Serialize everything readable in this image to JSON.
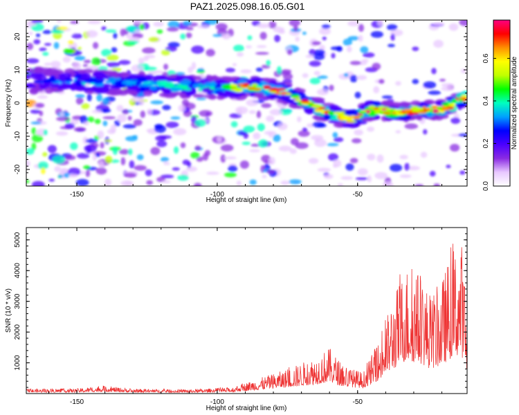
{
  "title": "PAZ1.2025.098.16.05.G01",
  "chart_data": [
    {
      "type": "heatmap",
      "xlabel": "Height of straight line (km)",
      "ylabel": "Frequency (Hz)",
      "xlim": [
        -168,
        -11
      ],
      "ylim": [
        -25,
        25
      ],
      "x_ticks": [
        -150,
        -100,
        -50
      ],
      "y_ticks": [
        20,
        10,
        0,
        -10,
        -20
      ],
      "colorbar": {
        "label": "Normalized spectral amplitude",
        "range": [
          0.0,
          0.78
        ],
        "ticks": [
          0.0,
          0.2,
          0.4,
          0.6
        ],
        "tick_labels": [
          "0.0",
          "0.2",
          "0.4",
          "0.6"
        ],
        "colors": [
          "#ffffff",
          "#e8c8ff",
          "#8a2be2",
          "#4b00ff",
          "#0000ff",
          "#00a0ff",
          "#00ffc0",
          "#00ff00",
          "#c0ff00",
          "#ffff00",
          "#ff9000",
          "#ff0000",
          "#ff0080"
        ]
      },
      "ridge": [
        {
          "x": -168,
          "y": 7
        },
        {
          "x": -150,
          "y": 6.5
        },
        {
          "x": -130,
          "y": 6
        },
        {
          "x": -110,
          "y": 5
        },
        {
          "x": -95,
          "y": 4.5
        },
        {
          "x": -85,
          "y": 5
        },
        {
          "x": -75,
          "y": 3
        },
        {
          "x": -68,
          "y": 0
        },
        {
          "x": -60,
          "y": -3
        },
        {
          "x": -52,
          "y": -5
        },
        {
          "x": -45,
          "y": -2
        },
        {
          "x": -35,
          "y": -3
        },
        {
          "x": -27,
          "y": -2
        },
        {
          "x": -20,
          "y": -2
        },
        {
          "x": -11,
          "y": 2
        }
      ]
    },
    {
      "type": "line",
      "xlabel": "Height of straight line (km)",
      "ylabel": "SNR (10 * v/v)",
      "xlim": [
        -168,
        -11
      ],
      "ylim": [
        0,
        5400
      ],
      "x_ticks": [
        -150,
        -100,
        -50
      ],
      "y_ticks": [
        1000,
        2000,
        3000,
        4000,
        5000
      ],
      "color": "#ee3333",
      "envelope": [
        {
          "x": -168,
          "y": 150
        },
        {
          "x": -150,
          "y": 160
        },
        {
          "x": -140,
          "y": 250
        },
        {
          "x": -130,
          "y": 150
        },
        {
          "x": -110,
          "y": 130
        },
        {
          "x": -95,
          "y": 200
        },
        {
          "x": -85,
          "y": 500
        },
        {
          "x": -75,
          "y": 800
        },
        {
          "x": -65,
          "y": 1200
        },
        {
          "x": -60,
          "y": 1500
        },
        {
          "x": -55,
          "y": 900
        },
        {
          "x": -48,
          "y": 700
        },
        {
          "x": -42,
          "y": 1800
        },
        {
          "x": -38,
          "y": 3000
        },
        {
          "x": -33,
          "y": 4200
        },
        {
          "x": -28,
          "y": 4000
        },
        {
          "x": -24,
          "y": 3200
        },
        {
          "x": -20,
          "y": 3700
        },
        {
          "x": -16,
          "y": 4800
        },
        {
          "x": -13,
          "y": 5000
        },
        {
          "x": -11,
          "y": 2800
        }
      ]
    }
  ]
}
